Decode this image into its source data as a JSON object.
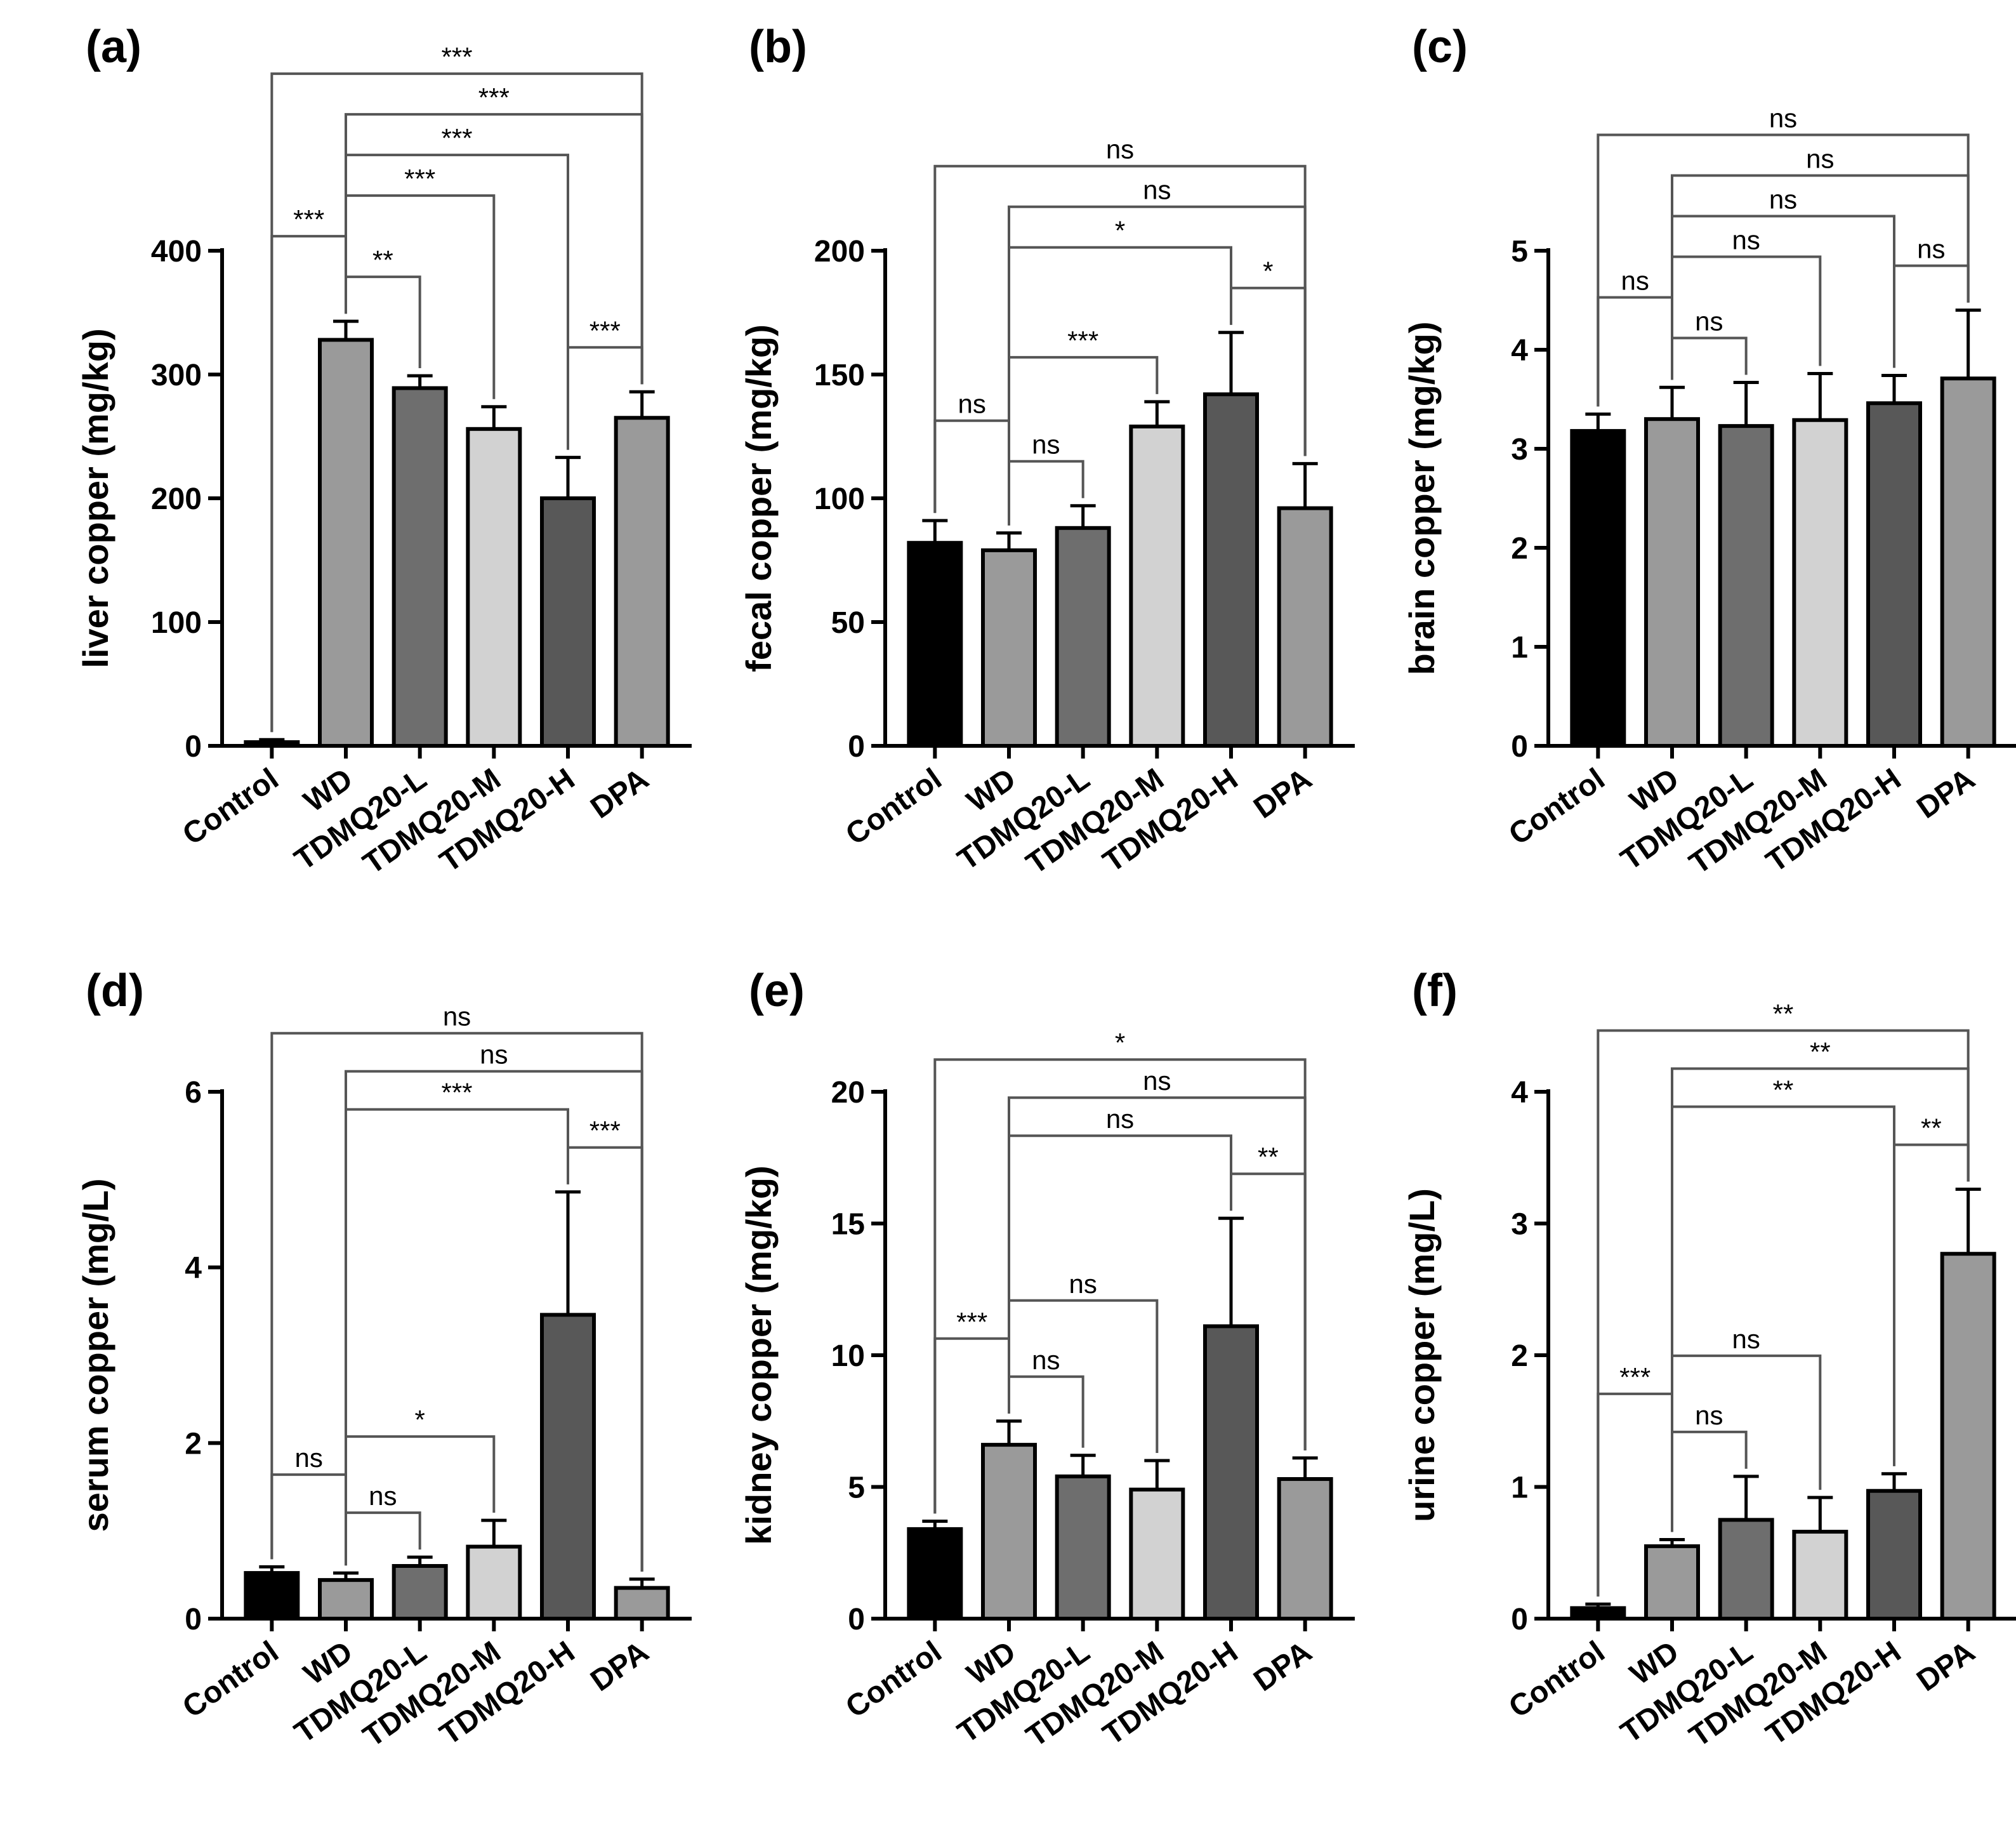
{
  "chart_data": [
    {
      "panel": "(a)",
      "type": "bar",
      "ylabel": "liver copper (mg/kg)",
      "categories": [
        "Control",
        "WD",
        "TDMQ20-L",
        "TDMQ20-M",
        "TDMQ20-H",
        "DPA"
      ],
      "values": [
        3,
        328,
        289,
        256,
        200,
        265
      ],
      "errors": [
        2,
        15,
        10,
        18,
        33,
        21
      ],
      "colors": [
        "#000000",
        "#9a9a9a",
        "#6e6e6e",
        "#d2d2d2",
        "#585858",
        "#9a9a9a"
      ],
      "ylim": [
        0,
        400
      ],
      "yticks": [
        0,
        100,
        200,
        300,
        400
      ],
      "comparisons": [
        {
          "from": 0,
          "to": 5,
          "label": "***"
        },
        {
          "from": 1,
          "to": 5,
          "label": "***"
        },
        {
          "from": 1,
          "to": 4,
          "label": "***"
        },
        {
          "from": 1,
          "to": 3,
          "label": "***"
        },
        {
          "from": 1,
          "to": 2,
          "label": "**"
        },
        {
          "from": 0,
          "to": 1,
          "label": "***"
        },
        {
          "from": 4,
          "to": 5,
          "label": "***"
        }
      ]
    },
    {
      "panel": "(b)",
      "type": "bar",
      "ylabel": "fecal copper (mg/kg)",
      "categories": [
        "Control",
        "WD",
        "TDMQ20-L",
        "TDMQ20-M",
        "TDMQ20-H",
        "DPA"
      ],
      "values": [
        82,
        79,
        88,
        129,
        142,
        96
      ],
      "errors": [
        9,
        7,
        9,
        10,
        25,
        18
      ],
      "colors": [
        "#000000",
        "#9a9a9a",
        "#6e6e6e",
        "#d2d2d2",
        "#585858",
        "#9a9a9a"
      ],
      "ylim": [
        0,
        200
      ],
      "yticks": [
        0,
        50,
        100,
        150,
        200
      ],
      "comparisons": [
        {
          "from": 0,
          "to": 5,
          "label": "ns"
        },
        {
          "from": 1,
          "to": 5,
          "label": "ns"
        },
        {
          "from": 1,
          "to": 4,
          "label": "*"
        },
        {
          "from": 4,
          "to": 5,
          "label": "*"
        },
        {
          "from": 1,
          "to": 3,
          "label": "***"
        },
        {
          "from": 1,
          "to": 2,
          "label": "ns"
        },
        {
          "from": 0,
          "to": 1,
          "label": "ns"
        }
      ]
    },
    {
      "panel": "(c)",
      "type": "bar",
      "ylabel": "brain copper (mg/kg)",
      "categories": [
        "Control",
        "WD",
        "TDMQ20-L",
        "TDMQ20-M",
        "TDMQ20-H",
        "DPA"
      ],
      "values": [
        3.18,
        3.3,
        3.23,
        3.29,
        3.46,
        3.71
      ],
      "errors": [
        0.17,
        0.32,
        0.44,
        0.47,
        0.28,
        0.69
      ],
      "colors": [
        "#000000",
        "#9a9a9a",
        "#6e6e6e",
        "#d2d2d2",
        "#585858",
        "#9a9a9a"
      ],
      "ylim": [
        0,
        5
      ],
      "yticks": [
        0,
        1,
        2,
        3,
        4,
        5
      ],
      "comparisons": [
        {
          "from": 0,
          "to": 5,
          "label": "ns"
        },
        {
          "from": 1,
          "to": 5,
          "label": "ns"
        },
        {
          "from": 1,
          "to": 4,
          "label": "ns"
        },
        {
          "from": 4,
          "to": 5,
          "label": "ns"
        },
        {
          "from": 1,
          "to": 3,
          "label": "ns"
        },
        {
          "from": 1,
          "to": 2,
          "label": "ns"
        },
        {
          "from": 0,
          "to": 1,
          "label": "ns"
        }
      ]
    },
    {
      "panel": "(d)",
      "type": "bar",
      "ylabel": "serum copper (mg/L)",
      "categories": [
        "Control",
        "WD",
        "TDMQ20-L",
        "TDMQ20-M",
        "TDMQ20-H",
        "DPA"
      ],
      "values": [
        0.52,
        0.44,
        0.6,
        0.82,
        3.46,
        0.35
      ],
      "errors": [
        0.07,
        0.08,
        0.1,
        0.3,
        1.4,
        0.1
      ],
      "colors": [
        "#000000",
        "#9a9a9a",
        "#6e6e6e",
        "#d2d2d2",
        "#585858",
        "#9a9a9a"
      ],
      "ylim": [
        0,
        6
      ],
      "yticks": [
        0,
        2,
        4,
        6
      ],
      "comparisons": [
        {
          "from": 0,
          "to": 5,
          "label": "ns"
        },
        {
          "from": 1,
          "to": 5,
          "label": "ns"
        },
        {
          "from": 1,
          "to": 4,
          "label": "***"
        },
        {
          "from": 4,
          "to": 5,
          "label": "***"
        },
        {
          "from": 1,
          "to": 3,
          "label": "*"
        },
        {
          "from": 1,
          "to": 2,
          "label": "ns"
        },
        {
          "from": 0,
          "to": 1,
          "label": "ns"
        }
      ]
    },
    {
      "panel": "(e)",
      "type": "bar",
      "ylabel": "kidney copper (mg/kg)",
      "categories": [
        "Control",
        "WD",
        "TDMQ20-L",
        "TDMQ20-M",
        "TDMQ20-H",
        "DPA"
      ],
      "values": [
        3.4,
        6.6,
        5.4,
        4.9,
        11.1,
        5.3
      ],
      "errors": [
        0.3,
        0.9,
        0.8,
        1.1,
        4.1,
        0.8
      ],
      "colors": [
        "#000000",
        "#9a9a9a",
        "#6e6e6e",
        "#d2d2d2",
        "#585858",
        "#9a9a9a"
      ],
      "ylim": [
        0,
        20
      ],
      "yticks": [
        0,
        5,
        10,
        15,
        20
      ],
      "comparisons": [
        {
          "from": 0,
          "to": 5,
          "label": "*"
        },
        {
          "from": 1,
          "to": 5,
          "label": "ns"
        },
        {
          "from": 1,
          "to": 4,
          "label": "ns"
        },
        {
          "from": 4,
          "to": 5,
          "label": "**"
        },
        {
          "from": 1,
          "to": 3,
          "label": "ns"
        },
        {
          "from": 1,
          "to": 2,
          "label": "ns"
        },
        {
          "from": 0,
          "to": 1,
          "label": "***"
        }
      ]
    },
    {
      "panel": "(f)",
      "type": "bar",
      "ylabel": "urine copper (mg/L)",
      "categories": [
        "Control",
        "WD",
        "TDMQ20-L",
        "TDMQ20-M",
        "TDMQ20-H",
        "DPA"
      ],
      "values": [
        0.08,
        0.55,
        0.75,
        0.66,
        0.97,
        2.77
      ],
      "errors": [
        0.03,
        0.05,
        0.33,
        0.26,
        0.13,
        0.49
      ],
      "colors": [
        "#000000",
        "#9a9a9a",
        "#6e6e6e",
        "#d2d2d2",
        "#585858",
        "#9a9a9a"
      ],
      "ylim": [
        0,
        4
      ],
      "yticks": [
        0,
        1,
        2,
        3,
        4
      ],
      "comparisons": [
        {
          "from": 0,
          "to": 5,
          "label": "**"
        },
        {
          "from": 1,
          "to": 5,
          "label": "**"
        },
        {
          "from": 4,
          "to": 5,
          "label": "**"
        },
        {
          "from": 1,
          "to": 4,
          "label": "**"
        },
        {
          "from": 1,
          "to": 3,
          "label": "ns"
        },
        {
          "from": 1,
          "to": 2,
          "label": "ns"
        },
        {
          "from": 0,
          "to": 1,
          "label": "***"
        }
      ]
    }
  ]
}
